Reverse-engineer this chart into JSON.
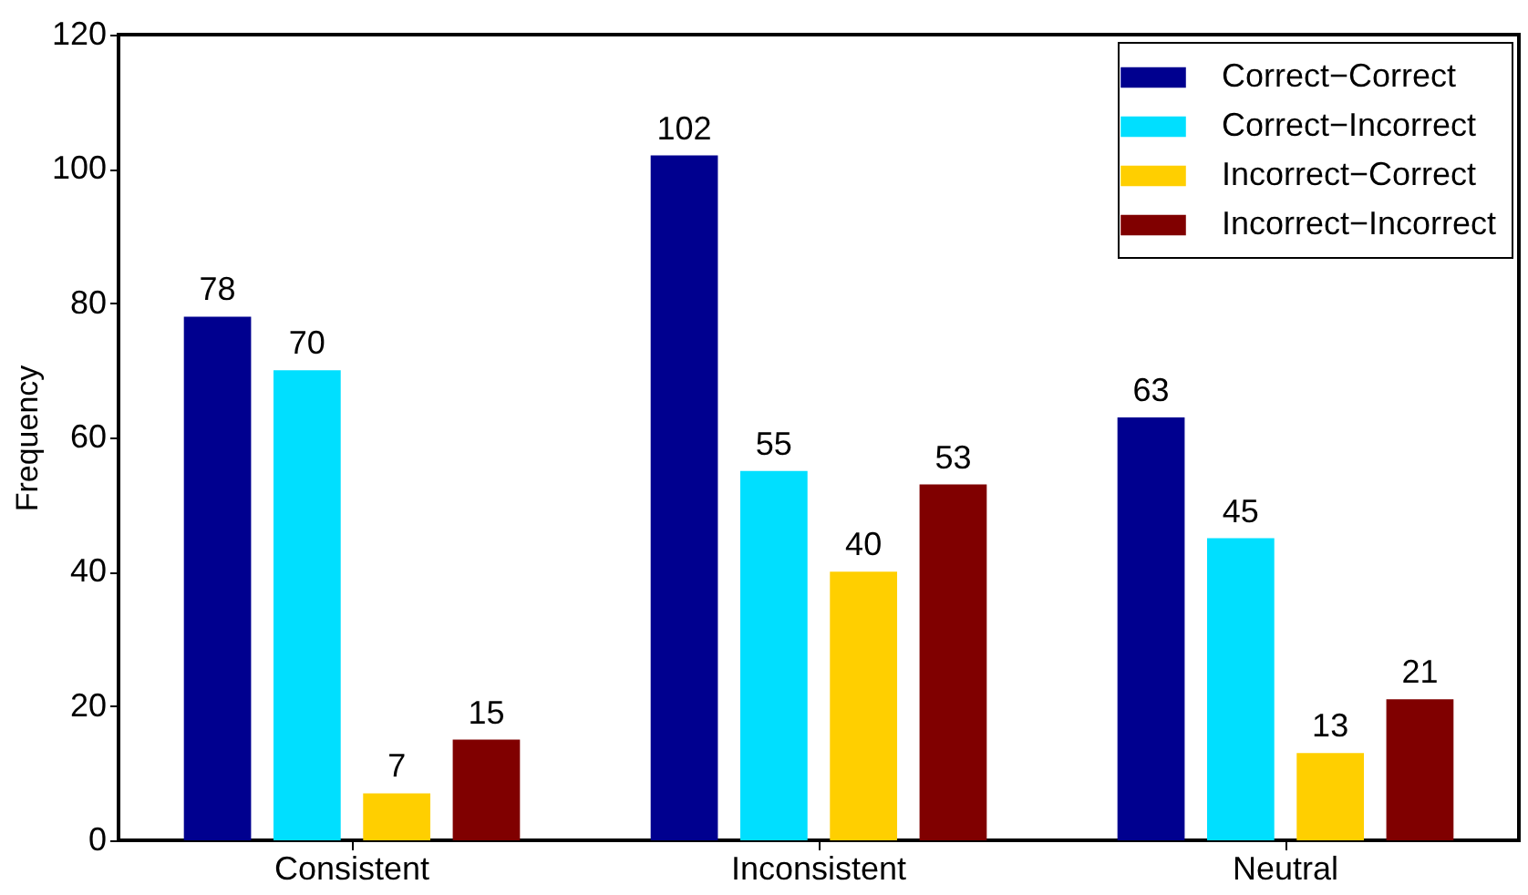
{
  "chart_data": {
    "type": "bar",
    "ylabel": "Frequency",
    "categories": [
      "Consistent",
      "Inconsistent",
      "Neutral"
    ],
    "series": [
      {
        "name": "Correct−Correct",
        "color": "#00008f",
        "values": [
          78,
          102,
          63
        ]
      },
      {
        "name": "Correct−Incorrect",
        "color": "#00dfff",
        "values": [
          70,
          55,
          45
        ]
      },
      {
        "name": "Incorrect−Correct",
        "color": "#ffcf00",
        "values": [
          7,
          40,
          13
        ]
      },
      {
        "name": "Incorrect−Incorrect",
        "color": "#800000",
        "values": [
          15,
          53,
          21
        ]
      }
    ],
    "ylim": [
      0,
      120
    ],
    "yticks": [
      0,
      20,
      40,
      60,
      80,
      100,
      120
    ],
    "data_labels": true,
    "legend": "top right",
    "grid": false
  }
}
